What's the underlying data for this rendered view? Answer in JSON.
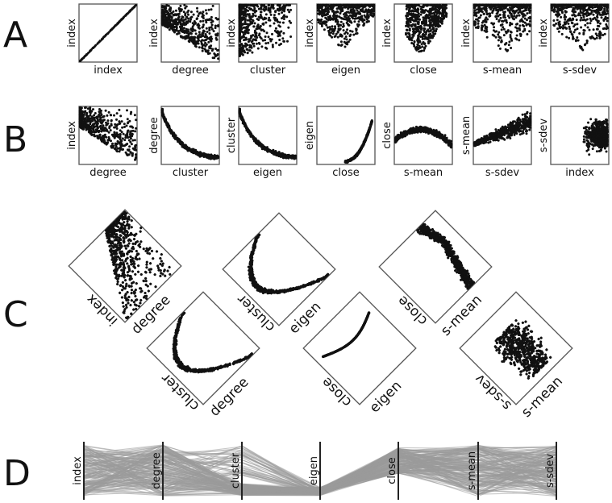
{
  "sections": [
    "A",
    "B",
    "C",
    "D"
  ],
  "row_a": [
    [
      "index",
      "index"
    ],
    [
      "index",
      "degree"
    ],
    [
      "index",
      "cluster"
    ],
    [
      "index",
      "eigen"
    ],
    [
      "index",
      "close"
    ],
    [
      "index",
      "s-mean"
    ],
    [
      "index",
      "s-sdev"
    ]
  ],
  "row_b": [
    [
      "index",
      "degree"
    ],
    [
      "degree",
      "cluster"
    ],
    [
      "cluster",
      "eigen"
    ],
    [
      "eigen",
      "close"
    ],
    [
      "close",
      "s-mean"
    ],
    [
      "s-mean",
      "s-sdev"
    ],
    [
      "s-sdev",
      "index"
    ]
  ],
  "row_c": [
    [
      "index",
      "degree"
    ],
    [
      "cluster",
      "eigen"
    ],
    [
      "close",
      "s-mean"
    ],
    [
      "cluster",
      "degree"
    ],
    [
      "close",
      "eigen"
    ],
    [
      "s-sdev",
      "s-mean"
    ]
  ],
  "parallel_axes": [
    "index",
    "degree",
    "cluster",
    "eigen",
    "close",
    "s-mean",
    "s-sdev"
  ],
  "colors": {
    "points": "#111111",
    "frame": "#555555",
    "lines": "#9a9a9a"
  }
}
